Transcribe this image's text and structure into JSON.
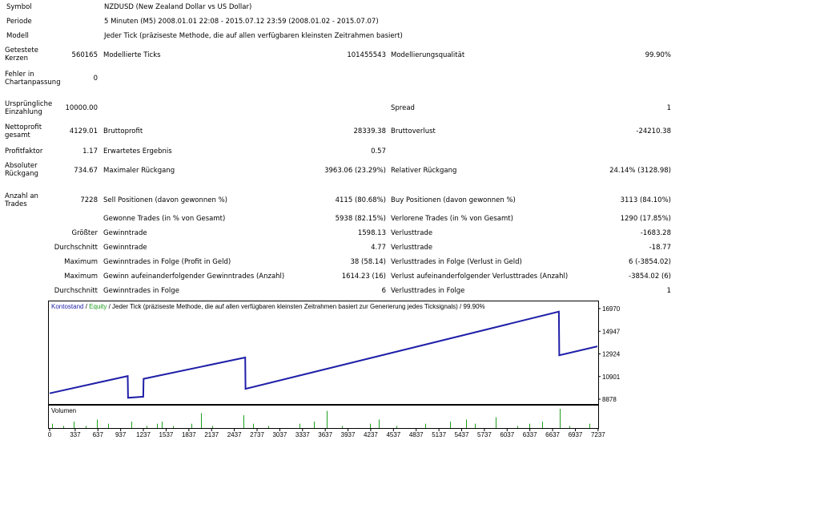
{
  "report": {
    "symbol_label": "Symbol",
    "symbol_value": "NZDUSD (New Zealand Dollar vs US Dollar)",
    "period_label": "Periode",
    "period_value": "5 Minuten (M5) 2008.01.01 22:08 - 2015.07.12 23:59 (2008.01.02 - 2015.07.07)",
    "model_label": "Modell",
    "model_value": "Jeder Tick (präziseste Methode, die auf allen verfügbaren kleinsten Zeitrahmen basiert)",
    "bars_label": "Getestete Kerzen",
    "bars_value": "560165",
    "ticks_label": "Modellierte Ticks",
    "ticks_value": "101455543",
    "quality_label": "Modellierungsqualität",
    "quality_value": "99.90%",
    "errors_label": "Fehler in Chartanpassung",
    "errors_value": "0",
    "deposit_label": "Ursprüngliche Einzahlung",
    "deposit_value": "10000.00",
    "spread_label": "Spread",
    "spread_value": "1",
    "net_label": "Nettoprofit gesamt",
    "net_value": "4129.01",
    "gross_profit_label": "Bruttoprofit",
    "gross_profit_value": "28339.38",
    "gross_loss_label": "Bruttoverlust",
    "gross_loss_value": "-24210.38",
    "pf_label": "Profitfaktor",
    "pf_value": "1.17",
    "expected_label": "Erwartetes Ergebnis",
    "expected_value": "0.57",
    "abs_dd_label": "Absoluter Rückgang",
    "abs_dd_value": "734.67",
    "max_dd_label": "Maximaler Rückgang",
    "max_dd_value": "3963.06 (23.29%)",
    "rel_dd_label": "Relativer Rückgang",
    "rel_dd_value": "24.14% (3128.98)",
    "trades_label": "Anzahl an Trades",
    "trades_value": "7228",
    "sell_label": "Sell Positionen (davon gewonnen %)",
    "sell_value": "4115 (80.68%)",
    "buy_label": "Buy Positionen (davon gewonnen %)",
    "buy_value": "3113 (84.10%)",
    "won_label": "Gewonne Trades (in % von Gesamt)",
    "won_value": "5938 (82.15%)",
    "lost_label": "Verlorene Trades (in % von Gesamt)",
    "lost_value": "1290 (17.85%)",
    "largest_label": "Größter",
    "largest_win_label": "Gewinntrade",
    "largest_win_value": "1598.13",
    "largest_loss_label": "Verlusttrade",
    "largest_loss_value": "-1683.28",
    "average_label": "Durchschnitt",
    "avg_win_label": "Gewinntrade",
    "avg_win_value": "4.77",
    "avg_loss_label": "Verlusttrade",
    "avg_loss_value": "-18.77",
    "max_label": "Maximum",
    "max_consec_win_label": "Gewinntrades in Folge (Profit in Geld)",
    "max_consec_win_value": "38 (58.14)",
    "max_consec_loss_label": "Verlusttrades in Folge (Verlust in Geld)",
    "max_consec_loss_value": "6 (-3854.02)",
    "max2_label": "Maximum",
    "max_profit_label": "Gewinn aufeinanderfolgender Gewinntrades (Anzahl)",
    "max_profit_value": "1614.23 (16)",
    "max_loss_label": "Verlust aufeinanderfolgender Verlusttrades (Anzahl)",
    "max_loss_value": "-3854.02 (6)",
    "average2_label": "Durchschnitt",
    "avg_consec_win_label": "Gewinntrades in Folge",
    "avg_consec_win_value": "6",
    "avg_consec_loss_label": "Verlusttrades in Folge",
    "avg_consec_loss_value": "1"
  },
  "chart_data": {
    "type": "line",
    "legend_balance": "Kontostand",
    "legend_sep": " / ",
    "legend_equity": "Equity",
    "legend_rest": " / Jeder Tick (präziseste Methode, die auf allen verfügbaren kleinsten Zeitrahmen basiert zur Generierung jedes Ticksignals) / 99.90%",
    "volume_label": "Volumen",
    "colors": {
      "balance": "#1f1fa8",
      "equity": "#1e9e1e",
      "volume": "#1e9e1e",
      "frame": "#000000"
    },
    "y_ticks": [
      "16970",
      "14947",
      "12924",
      "10901",
      "8878"
    ],
    "ylim": [
      8878,
      16970
    ],
    "x_ticks": [
      "0",
      "337",
      "637",
      "937",
      "1237",
      "1537",
      "1837",
      "2137",
      "2437",
      "2737",
      "3037",
      "3337",
      "3637",
      "3937",
      "4237",
      "4537",
      "4837",
      "5137",
      "5437",
      "5737",
      "6037",
      "6337",
      "6637",
      "6937",
      "7237"
    ],
    "xlim": [
      0,
      7228
    ],
    "series": [
      {
        "name": "Kontostand",
        "x": [
          0,
          1030,
          1035,
          1235,
          1240,
          2580,
          2585,
          6720,
          6725,
          7228
        ],
        "y": [
          9400,
          10950,
          9000,
          9100,
          10700,
          12600,
          9800,
          16700,
          12800,
          13600
        ]
      }
    ],
    "volume": {
      "x": [
        30,
        180,
        320,
        480,
        620,
        770,
        1080,
        1280,
        1420,
        1480,
        1630,
        1870,
        2000,
        2140,
        2560,
        2680,
        2880,
        3300,
        3490,
        3660,
        3860,
        4230,
        4340,
        4580,
        4960,
        5280,
        5500,
        5610,
        5890,
        6170,
        6330,
        6500,
        6730,
        6860,
        7120
      ],
      "v": [
        2,
        1,
        3,
        1,
        4,
        2,
        3,
        1,
        2,
        3,
        1,
        2,
        7,
        1,
        6,
        2,
        1,
        2,
        3,
        8,
        1,
        2,
        4,
        1,
        2,
        3,
        4,
        2,
        5,
        1,
        2,
        3,
        9,
        1,
        2
      ]
    }
  }
}
